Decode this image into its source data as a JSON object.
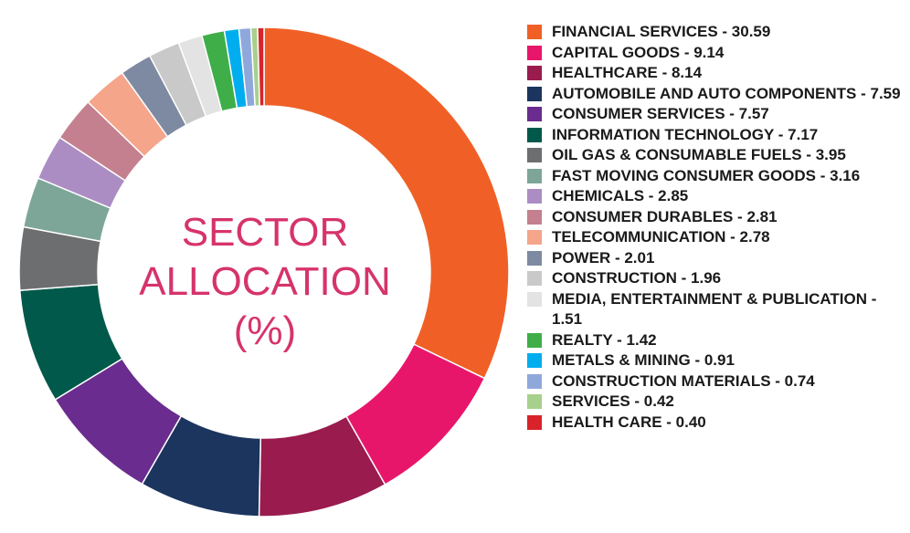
{
  "center_title": [
    "SECTOR",
    "ALLOCATION",
    "(%)"
  ],
  "chart_data": {
    "type": "pie",
    "style": "donut",
    "legend_position": "right",
    "slices": [
      {
        "label": "FINANCIAL SERVICES - 30.59",
        "value": 30.59,
        "color": "#f06026"
      },
      {
        "label": "CAPITAL GOODS - 9.14",
        "value": 9.14,
        "color": "#e8166a"
      },
      {
        "label": "HEALTHCARE - 8.14",
        "value": 8.14,
        "color": "#9a1b4e"
      },
      {
        "label": "AUTOMOBILE AND AUTO COMPONENTS - 7.59",
        "value": 7.59,
        "color": "#1c355e"
      },
      {
        "label": "CONSUMER SERVICES - 7.57",
        "value": 7.57,
        "color": "#6a2c8e"
      },
      {
        "label": "INFORMATION TECHNOLOGY - 7.17",
        "value": 7.17,
        "color": "#00594a"
      },
      {
        "label": "OIL GAS & CONSUMABLE FUELS - 3.95",
        "value": 3.95,
        "color": "#6d6e70"
      },
      {
        "label": "FAST MOVING CONSUMER GOODS - 3.16",
        "value": 3.16,
        "color": "#7da699"
      },
      {
        "label": "CHEMICALS - 2.85",
        "value": 2.85,
        "color": "#ab8dc3"
      },
      {
        "label": "CONSUMER DURABLES - 2.81",
        "value": 2.81,
        "color": "#c4808e"
      },
      {
        "label": "TELECOMMUNICATION - 2.78",
        "value": 2.78,
        "color": "#f4a58a"
      },
      {
        "label": "POWER - 2.01",
        "value": 2.01,
        "color": "#7e8aa2"
      },
      {
        "label": "CONSTRUCTION - 1.96",
        "value": 1.96,
        "color": "#c9c9c9"
      },
      {
        "label": "MEDIA, ENTERTAINMENT & PUBLICATION - 1.51",
        "value": 1.51,
        "color": "#e3e3e3"
      },
      {
        "label": "REALTY - 1.42",
        "value": 1.42,
        "color": "#3fae49"
      },
      {
        "label": "METALS & MINING - 0.91",
        "value": 0.91,
        "color": "#00aeef"
      },
      {
        "label": "CONSTRUCTION MATERIALS - 0.74",
        "value": 0.74,
        "color": "#8fa8dc"
      },
      {
        "label": "SERVICES - 0.42",
        "value": 0.42,
        "color": "#a8d08d"
      },
      {
        "label": "HEALTH CARE - 0.40",
        "value": 0.4,
        "color": "#d8232a"
      }
    ]
  }
}
